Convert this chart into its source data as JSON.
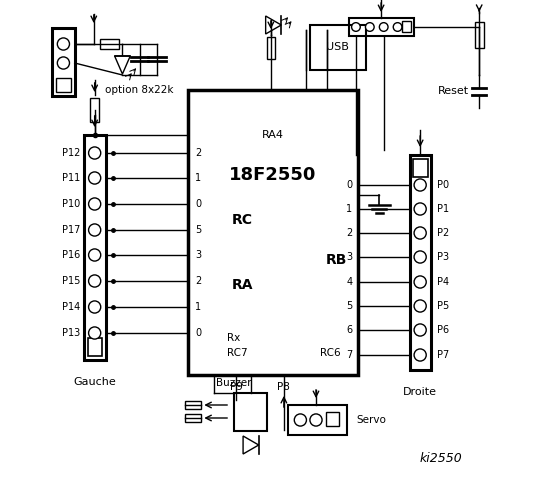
{
  "bg_color": "#ffffff",
  "lc": "black",
  "title": "ki2550",
  "chip_label": "18F2550",
  "chip_sub": "RA4",
  "left_pins": [
    "P12",
    "P11",
    "P10",
    "P17",
    "P16",
    "P15",
    "P14",
    "P13"
  ],
  "left_pin_nums": [
    "2",
    "1",
    "0",
    "5",
    "3",
    "2",
    "1",
    "0"
  ],
  "right_pins": [
    "P0",
    "P1",
    "P2",
    "P3",
    "P4",
    "P5",
    "P6",
    "P7"
  ],
  "right_pin_nums": [
    "0",
    "1",
    "2",
    "3",
    "4",
    "5",
    "6",
    "7"
  ],
  "text_gauche": "Gauche",
  "text_droite": "Droite",
  "text_option": "option 8x22k",
  "text_reset": "Reset",
  "text_usb": "USB",
  "figw": 5.53,
  "figh": 4.8,
  "dpi": 100
}
